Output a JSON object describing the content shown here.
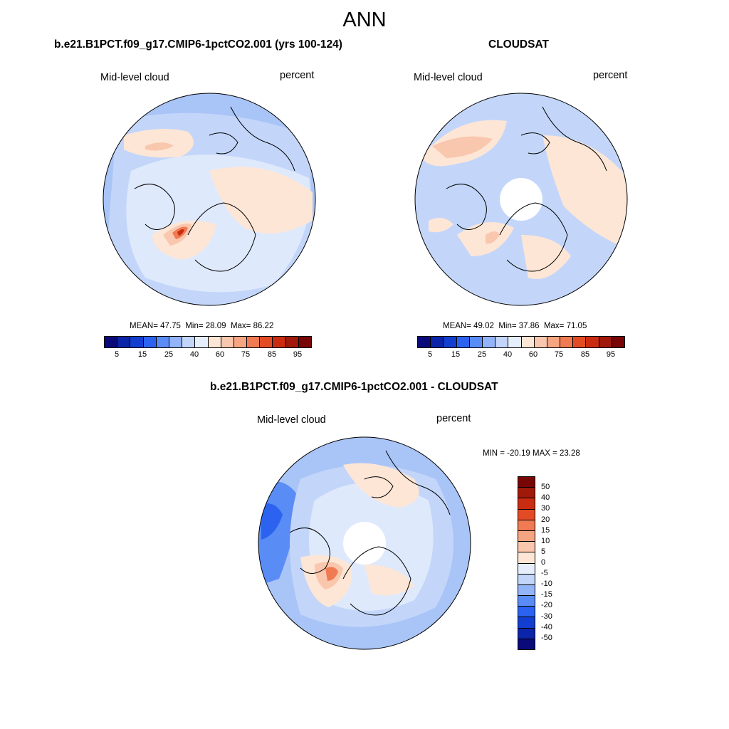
{
  "title": "ANN",
  "panels": [
    {
      "title": "b.e21.B1PCT.f09_g17.CMIP6-1pctCO2.001 (yrs 100-124)",
      "left_label": "Mid-level cloud",
      "right_label": "percent",
      "mean": "MEAN=  47.75",
      "min": "Min=  28.09",
      "max": "Max=  86.22"
    },
    {
      "title": "CLOUDSAT",
      "left_label": "Mid-level cloud",
      "right_label": "percent",
      "mean": "MEAN=  49.02",
      "min": "Min=  37.86",
      "max": "Max=  71.05"
    }
  ],
  "diff_panel": {
    "title": "b.e21.B1PCT.f09_g17.CMIP6-1pctCO2.001 - CLOUDSAT",
    "left_label": "Mid-level cloud",
    "right_label": "percent",
    "minmax": "MIN = -20.19 MAX =  23.28"
  },
  "colorbar_abs": {
    "tick_labels": [
      "5",
      "15",
      "25",
      "40",
      "60",
      "75",
      "85",
      "95"
    ],
    "colors": [
      "#0a0a7a",
      "#0b24a8",
      "#123fcf",
      "#2b63f0",
      "#5a8cf6",
      "#93b4f8",
      "#c3d6fa",
      "#e6eefc",
      "#fde6d6",
      "#f9c7ad",
      "#f6a582",
      "#f07a52",
      "#e34b25",
      "#c92c10",
      "#a0190a",
      "#780606"
    ]
  },
  "colorbar_diff": {
    "tick_labels": [
      "50",
      "40",
      "30",
      "20",
      "15",
      "10",
      "5",
      "0",
      "-5",
      "-10",
      "-15",
      "-20",
      "-30",
      "-40",
      "-50"
    ],
    "colors": [
      "#780606",
      "#a0190a",
      "#c92c10",
      "#e34b25",
      "#f07a52",
      "#f6a582",
      "#f9c7ad",
      "#fde6d6",
      "#e6eefc",
      "#c3d6fa",
      "#93b4f8",
      "#5a8cf6",
      "#2b63f0",
      "#123fcf",
      "#0b24a8",
      "#0a0a7a"
    ]
  }
}
